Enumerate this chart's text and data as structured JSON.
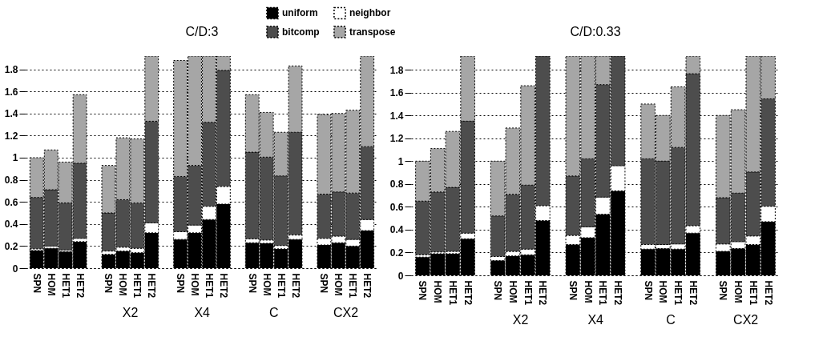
{
  "chart_data": [
    {
      "type": "bar",
      "stacked": true,
      "title": "C/D:3",
      "legend": "top right",
      "grid": "y",
      "ylim": [
        0,
        1.92
      ],
      "yticks": [
        0,
        0.2,
        0.4,
        0.6,
        0.8,
        1,
        1.2,
        1.4,
        1.6,
        1.8
      ],
      "categories": [
        "SPN",
        "HOM",
        "HET1",
        "HET2",
        null,
        "SPN",
        "HOM",
        "HET1",
        "HET2",
        null,
        "SPN",
        "HOM",
        "HET1",
        "HET2",
        null,
        "SPN",
        "HOM",
        "HET1",
        "HET2",
        null,
        "SPN",
        "HOM",
        "HET1",
        "HET2"
      ],
      "annotations": [
        "X2",
        "X4",
        "C",
        "CX2"
      ],
      "series": [
        {
          "name": "uniform",
          "color": "#000000",
          "values": [
            0.16,
            0.18,
            0.15,
            0.24,
            null,
            0.125,
            0.155,
            0.14,
            0.32,
            null,
            0.26,
            0.32,
            0.44,
            0.58,
            null,
            0.23,
            0.225,
            0.175,
            0.26,
            null,
            0.21,
            0.23,
            0.2,
            0.34
          ]
        },
        {
          "name": "neighbor",
          "color": "#ffffff",
          "values": [
            0.015,
            0.02,
            0.015,
            0.03,
            null,
            0.03,
            0.035,
            0.04,
            0.09,
            null,
            0.07,
            0.07,
            0.12,
            0.16,
            null,
            0.035,
            0.03,
            0.03,
            0.04,
            null,
            0.06,
            0.06,
            0.06,
            0.1
          ]
        },
        {
          "name": "bitcomp",
          "color": "#4d4d4d",
          "values": [
            0.465,
            0.51,
            0.425,
            0.68,
            null,
            0.345,
            0.43,
            0.41,
            0.92,
            null,
            0.5,
            0.54,
            0.76,
            1.05,
            null,
            0.785,
            0.75,
            0.63,
            0.93,
            null,
            0.4,
            0.4,
            0.42,
            0.66
          ]
        },
        {
          "name": "transpose",
          "color": "#a6a6a6",
          "values": [
            0.36,
            0.36,
            0.37,
            0.62,
            null,
            0.43,
            0.56,
            0.58,
            0.59,
            null,
            1.05,
            0.99,
            0.6,
            0.13,
            null,
            0.52,
            0.405,
            0.395,
            0.6,
            null,
            0.72,
            0.71,
            0.75,
            0.82
          ]
        }
      ]
    },
    {
      "type": "bar",
      "stacked": true,
      "title": "C/D:0.33",
      "grid": "y",
      "ylim": [
        0,
        1.92
      ],
      "yticks": [
        0,
        0.2,
        0.4,
        0.6,
        0.8,
        1,
        1.2,
        1.4,
        1.6,
        1.8
      ],
      "categories": [
        "SPN",
        "HOM",
        "HET1",
        "HET2",
        null,
        "SPN",
        "HOM",
        "HET1",
        "HET2",
        null,
        "SPN",
        "HOM",
        "HET1",
        "HET2",
        null,
        "SPN",
        "HOM",
        "HET1",
        "HET2",
        null,
        "SPN",
        "HOM",
        "HET1",
        "HET2"
      ],
      "annotations": [
        "X2",
        "X4",
        "C",
        "CX2"
      ],
      "series": [
        {
          "name": "uniform",
          "color": "#000000",
          "values": [
            0.16,
            0.19,
            0.19,
            0.32,
            null,
            0.13,
            0.17,
            0.18,
            0.48,
            null,
            0.27,
            0.33,
            0.535,
            0.74,
            null,
            0.23,
            0.235,
            0.23,
            0.37,
            null,
            0.21,
            0.235,
            0.27,
            0.47
          ]
        },
        {
          "name": "neighbor",
          "color": "#ffffff",
          "values": [
            0.02,
            0.015,
            0.02,
            0.05,
            null,
            0.035,
            0.04,
            0.05,
            0.13,
            null,
            0.08,
            0.095,
            0.15,
            0.22,
            null,
            0.04,
            0.035,
            0.045,
            0.065,
            null,
            0.065,
            0.06,
            0.075,
            0.135
          ]
        },
        {
          "name": "bitcomp",
          "color": "#4d4d4d",
          "values": [
            0.47,
            0.525,
            0.56,
            0.98,
            null,
            0.355,
            0.5,
            0.56,
            1.31,
            null,
            0.52,
            0.595,
            0.985,
            0.96,
            null,
            0.75,
            0.73,
            0.845,
            1.33,
            null,
            0.405,
            0.425,
            0.56,
            0.94
          ]
        },
        {
          "name": "transpose",
          "color": "#a6a6a6",
          "values": [
            0.35,
            0.38,
            0.49,
            0.57,
            null,
            0.48,
            0.58,
            0.87,
            null,
            null,
            1.05,
            0.9,
            0.25,
            null,
            null,
            0.48,
            0.4,
            0.53,
            0.155,
            null,
            0.72,
            0.73,
            1.015,
            0.375
          ]
        }
      ]
    }
  ]
}
